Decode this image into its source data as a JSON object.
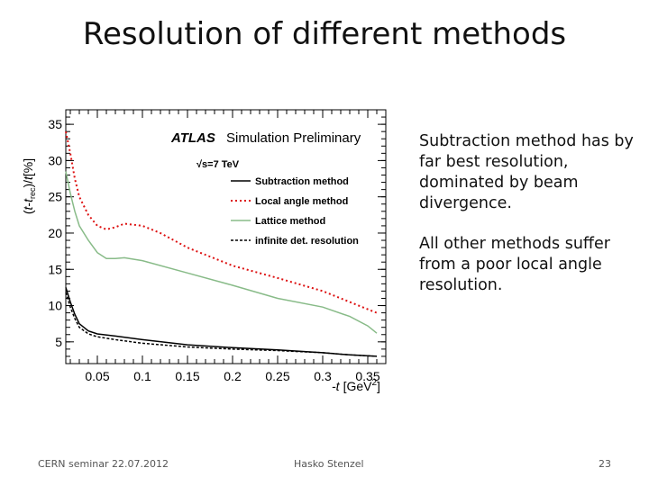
{
  "slide": {
    "title": "Resolution of different methods",
    "bullets": [
      "Subtraction method has by far best resolution, dominated by beam divergence.",
      "All other methods suffer from a poor local angle resolution."
    ],
    "footer_left": "CERN seminar 22.07.2012",
    "footer_center": "Hasko Stenzel",
    "footer_right": "23"
  },
  "chart_data": {
    "type": "line",
    "title": "",
    "xlabel_prefix": "-t",
    "xlabel_unit": "[GeV",
    "xlabel_sup": "2",
    "xlabel_end": "]",
    "ylabel": "(t-t_rec)/t[%]",
    "ylabel_parts": {
      "open": "(",
      "t": "t",
      "minus": "-",
      "trec": "t",
      "sub": "rec",
      "close": ")/",
      "t2": "t",
      "pct": "[%]"
    },
    "xlim": [
      0.015,
      0.37
    ],
    "ylim": [
      2,
      37
    ],
    "xticks": [
      "0.05",
      "0.1",
      "0.15",
      "0.2",
      "0.25",
      "0.3",
      "0.35"
    ],
    "xtick_values": [
      0.05,
      0.1,
      0.15,
      0.2,
      0.25,
      0.3,
      0.35
    ],
    "yticks": [
      "5",
      "10",
      "15",
      "20",
      "25",
      "30",
      "35"
    ],
    "ytick_values": [
      5,
      10,
      15,
      20,
      25,
      30,
      35
    ],
    "annotation": {
      "experiment": "ATLAS",
      "label": "Simulation Preliminary",
      "energy_prefix": "√s",
      "energy_value": "=7 TeV"
    },
    "series": [
      {
        "name": "Subtraction method",
        "color": "#000000",
        "dash": "",
        "x": [
          0.015,
          0.02,
          0.025,
          0.03,
          0.04,
          0.05,
          0.07,
          0.1,
          0.15,
          0.2,
          0.25,
          0.3,
          0.33,
          0.36
        ],
        "values": [
          12.5,
          10.5,
          8.8,
          7.5,
          6.5,
          6.1,
          5.8,
          5.3,
          4.6,
          4.2,
          3.9,
          3.5,
          3.2,
          3.0
        ]
      },
      {
        "name": "Local angle method",
        "color": "#dd1111",
        "dash": "2,3",
        "x": [
          0.015,
          0.02,
          0.025,
          0.03,
          0.04,
          0.05,
          0.06,
          0.07,
          0.08,
          0.1,
          0.12,
          0.15,
          0.2,
          0.25,
          0.3,
          0.33,
          0.35,
          0.36
        ],
        "values": [
          34.0,
          31.0,
          27.5,
          25.0,
          22.5,
          21.0,
          20.5,
          20.8,
          21.3,
          21.0,
          20.0,
          18.0,
          15.5,
          13.8,
          12.0,
          10.5,
          9.5,
          9.0
        ]
      },
      {
        "name": "Lattice method",
        "color": "#88bb88",
        "dash": "",
        "x": [
          0.015,
          0.02,
          0.025,
          0.03,
          0.04,
          0.05,
          0.06,
          0.07,
          0.08,
          0.1,
          0.15,
          0.2,
          0.25,
          0.3,
          0.33,
          0.35,
          0.36
        ],
        "values": [
          28.5,
          25.5,
          23.0,
          21.0,
          19.0,
          17.3,
          16.5,
          16.5,
          16.6,
          16.2,
          14.5,
          12.8,
          11.0,
          9.8,
          8.5,
          7.2,
          6.2
        ]
      },
      {
        "name": "infinite det. resolution",
        "color": "#000000",
        "dash": "3,2",
        "x": [
          0.015,
          0.02,
          0.025,
          0.03,
          0.04,
          0.05,
          0.07,
          0.1,
          0.15,
          0.2,
          0.25,
          0.3,
          0.33,
          0.36
        ],
        "values": [
          11.8,
          9.8,
          8.2,
          7.0,
          6.1,
          5.7,
          5.3,
          4.8,
          4.3,
          4.0,
          3.8,
          3.5,
          3.2,
          3.0
        ]
      }
    ],
    "legend_position": "top-right"
  }
}
